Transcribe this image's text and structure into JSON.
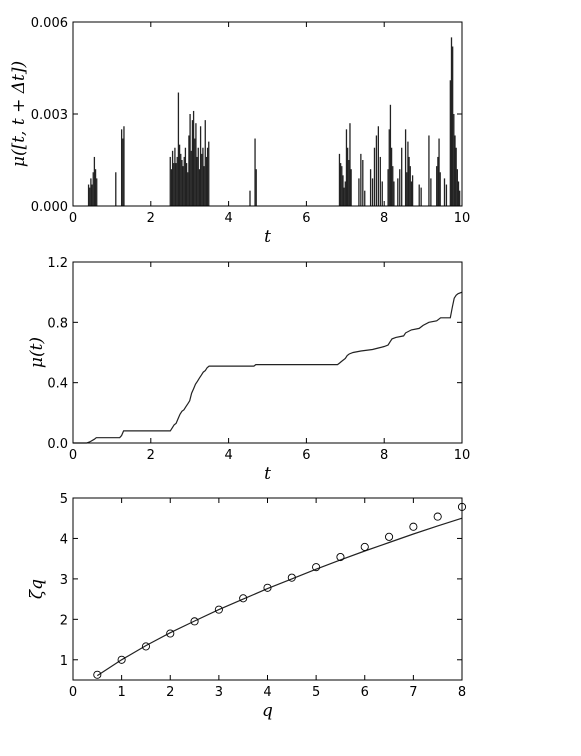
{
  "chart_data": [
    {
      "type": "bar",
      "xlabel": "t",
      "ylabel": "μ([t, t + Δt])",
      "xlim": [
        0,
        10
      ],
      "ylim": [
        0,
        0.006
      ],
      "xticks": [
        0,
        2,
        4,
        6,
        8,
        10
      ],
      "yticks": [
        "0.000",
        "0.003",
        "0.006"
      ],
      "grid": false,
      "bars": [
        [
          0.4,
          0.0007
        ],
        [
          0.43,
          0.0006
        ],
        [
          0.46,
          0.0009
        ],
        [
          0.49,
          0.0007
        ],
        [
          0.52,
          0.0011
        ],
        [
          0.55,
          0.0016
        ],
        [
          0.58,
          0.0012
        ],
        [
          0.61,
          0.0009
        ],
        [
          1.1,
          0.0011
        ],
        [
          1.25,
          0.0025
        ],
        [
          1.28,
          0.0022
        ],
        [
          1.31,
          0.0026
        ],
        [
          2.5,
          0.0016
        ],
        [
          2.53,
          0.0012
        ],
        [
          2.56,
          0.0018
        ],
        [
          2.59,
          0.0014
        ],
        [
          2.62,
          0.0019
        ],
        [
          2.65,
          0.0014
        ],
        [
          2.68,
          0.0016
        ],
        [
          2.71,
          0.0037
        ],
        [
          2.74,
          0.002
        ],
        [
          2.77,
          0.0017
        ],
        [
          2.8,
          0.0015
        ],
        [
          2.83,
          0.0013
        ],
        [
          2.86,
          0.0016
        ],
        [
          2.89,
          0.0019
        ],
        [
          2.92,
          0.0014
        ],
        [
          2.95,
          0.0011
        ],
        [
          2.98,
          0.0023
        ],
        [
          3.01,
          0.003
        ],
        [
          3.04,
          0.0018
        ],
        [
          3.07,
          0.0028
        ],
        [
          3.1,
          0.0031
        ],
        [
          3.13,
          0.0022
        ],
        [
          3.16,
          0.0027
        ],
        [
          3.19,
          0.0016
        ],
        [
          3.22,
          0.0019
        ],
        [
          3.25,
          0.0012
        ],
        [
          3.28,
          0.0026
        ],
        [
          3.31,
          0.0017
        ],
        [
          3.34,
          0.0019
        ],
        [
          3.37,
          0.0013
        ],
        [
          3.4,
          0.0028
        ],
        [
          3.43,
          0.0016
        ],
        [
          3.46,
          0.0019
        ],
        [
          3.49,
          0.0021
        ],
        [
          4.55,
          0.0005
        ],
        [
          4.68,
          0.0022
        ],
        [
          4.71,
          0.0012
        ],
        [
          6.85,
          0.0017
        ],
        [
          6.88,
          0.0014
        ],
        [
          6.91,
          0.0013
        ],
        [
          6.94,
          0.001
        ],
        [
          6.97,
          0.0006
        ],
        [
          7.0,
          0.0008
        ],
        [
          7.03,
          0.0025
        ],
        [
          7.06,
          0.0019
        ],
        [
          7.09,
          0.0015
        ],
        [
          7.12,
          0.0027
        ],
        [
          7.15,
          0.0012
        ],
        [
          7.35,
          0.0009
        ],
        [
          7.4,
          0.0017
        ],
        [
          7.45,
          0.0015
        ],
        [
          7.5,
          0.0005
        ],
        [
          7.65,
          0.0012
        ],
        [
          7.7,
          0.0009
        ],
        [
          7.75,
          0.0019
        ],
        [
          7.8,
          0.0023
        ],
        [
          7.85,
          0.0026
        ],
        [
          7.9,
          0.0016
        ],
        [
          7.95,
          0.0008
        ],
        [
          8.1,
          0.0012
        ],
        [
          8.13,
          0.0025
        ],
        [
          8.16,
          0.0033
        ],
        [
          8.19,
          0.0019
        ],
        [
          8.22,
          0.0013
        ],
        [
          8.25,
          0.0008
        ],
        [
          8.35,
          0.0009
        ],
        [
          8.4,
          0.0012
        ],
        [
          8.45,
          0.0019
        ],
        [
          8.55,
          0.0025
        ],
        [
          8.58,
          0.0011
        ],
        [
          8.61,
          0.0021
        ],
        [
          8.64,
          0.0016
        ],
        [
          8.67,
          0.0013
        ],
        [
          8.7,
          0.0008
        ],
        [
          8.73,
          0.001
        ],
        [
          8.9,
          0.0007
        ],
        [
          8.95,
          0.0006
        ],
        [
          9.15,
          0.0023
        ],
        [
          9.2,
          0.0009
        ],
        [
          9.35,
          0.0013
        ],
        [
          9.38,
          0.0016
        ],
        [
          9.41,
          0.0022
        ],
        [
          9.44,
          0.0011
        ],
        [
          9.55,
          0.0009
        ],
        [
          9.6,
          0.0007
        ],
        [
          9.7,
          0.0041
        ],
        [
          9.73,
          0.0055
        ],
        [
          9.76,
          0.0052
        ],
        [
          9.79,
          0.003
        ],
        [
          9.82,
          0.0023
        ],
        [
          9.85,
          0.0019
        ],
        [
          9.88,
          0.0012
        ],
        [
          9.91,
          0.0008
        ],
        [
          9.94,
          0.0005
        ]
      ]
    },
    {
      "type": "line",
      "xlabel": "t",
      "ylabel": "μ(t)",
      "xlim": [
        0,
        10
      ],
      "ylim": [
        0,
        1.2
      ],
      "xticks": [
        0,
        2,
        4,
        6,
        8,
        10
      ],
      "yticks": [
        "0.0",
        "0.4",
        "0.8",
        "1.2"
      ],
      "grid": false,
      "points": [
        [
          0.0,
          0.0
        ],
        [
          0.35,
          0.0
        ],
        [
          0.45,
          0.01
        ],
        [
          0.55,
          0.025
        ],
        [
          0.6,
          0.035
        ],
        [
          1.2,
          0.035
        ],
        [
          1.25,
          0.05
        ],
        [
          1.3,
          0.08
        ],
        [
          2.5,
          0.08
        ],
        [
          2.55,
          0.1
        ],
        [
          2.6,
          0.12
        ],
        [
          2.65,
          0.13
        ],
        [
          2.7,
          0.16
        ],
        [
          2.75,
          0.19
        ],
        [
          2.8,
          0.21
        ],
        [
          2.85,
          0.22
        ],
        [
          2.9,
          0.24
        ],
        [
          2.95,
          0.26
        ],
        [
          3.0,
          0.28
        ],
        [
          3.05,
          0.33
        ],
        [
          3.1,
          0.36
        ],
        [
          3.15,
          0.39
        ],
        [
          3.2,
          0.41
        ],
        [
          3.25,
          0.43
        ],
        [
          3.3,
          0.45
        ],
        [
          3.35,
          0.47
        ],
        [
          3.4,
          0.48
        ],
        [
          3.45,
          0.5
        ],
        [
          3.5,
          0.51
        ],
        [
          4.65,
          0.51
        ],
        [
          4.7,
          0.52
        ],
        [
          6.8,
          0.52
        ],
        [
          6.85,
          0.53
        ],
        [
          6.9,
          0.54
        ],
        [
          7.0,
          0.56
        ],
        [
          7.05,
          0.58
        ],
        [
          7.1,
          0.59
        ],
        [
          7.2,
          0.6
        ],
        [
          7.4,
          0.61
        ],
        [
          7.7,
          0.62
        ],
        [
          7.85,
          0.63
        ],
        [
          8.0,
          0.64
        ],
        [
          8.1,
          0.65
        ],
        [
          8.15,
          0.67
        ],
        [
          8.2,
          0.69
        ],
        [
          8.3,
          0.7
        ],
        [
          8.5,
          0.71
        ],
        [
          8.55,
          0.73
        ],
        [
          8.7,
          0.75
        ],
        [
          8.9,
          0.76
        ],
        [
          9.0,
          0.78
        ],
        [
          9.15,
          0.8
        ],
        [
          9.35,
          0.81
        ],
        [
          9.45,
          0.83
        ],
        [
          9.7,
          0.83
        ],
        [
          9.75,
          0.9
        ],
        [
          9.8,
          0.96
        ],
        [
          9.85,
          0.98
        ],
        [
          9.9,
          0.99
        ],
        [
          10.0,
          1.0
        ]
      ]
    },
    {
      "type": "scatter",
      "xlabel": "q",
      "ylabel": "ζq",
      "xlim": [
        0,
        8
      ],
      "ylim": [
        0.5,
        5
      ],
      "xticks": [
        0,
        1,
        2,
        3,
        4,
        5,
        6,
        7,
        8
      ],
      "yticks": [
        1,
        2,
        3,
        4,
        5
      ],
      "grid": false,
      "points": [
        [
          0.5,
          0.63
        ],
        [
          1.0,
          1.0
        ],
        [
          1.5,
          1.33
        ],
        [
          2.0,
          1.65
        ],
        [
          2.5,
          1.95
        ],
        [
          3.0,
          2.24
        ],
        [
          3.5,
          2.52
        ],
        [
          4.0,
          2.78
        ],
        [
          4.5,
          3.03
        ],
        [
          5.0,
          3.29
        ],
        [
          5.5,
          3.54
        ],
        [
          6.0,
          3.79
        ],
        [
          6.5,
          4.04
        ],
        [
          7.0,
          4.29
        ],
        [
          7.5,
          4.54
        ],
        [
          8.0,
          4.78
        ]
      ],
      "curve": [
        [
          0.5,
          0.61
        ],
        [
          1.0,
          1.0
        ],
        [
          1.5,
          1.35
        ],
        [
          2.0,
          1.67
        ],
        [
          2.5,
          1.96
        ],
        [
          3.0,
          2.24
        ],
        [
          3.5,
          2.5
        ],
        [
          4.0,
          2.76
        ],
        [
          4.5,
          3.0
        ],
        [
          5.0,
          3.24
        ],
        [
          5.5,
          3.47
        ],
        [
          6.0,
          3.69
        ],
        [
          6.5,
          3.9
        ],
        [
          7.0,
          4.11
        ],
        [
          7.5,
          4.31
        ],
        [
          8.0,
          4.5
        ]
      ]
    }
  ]
}
